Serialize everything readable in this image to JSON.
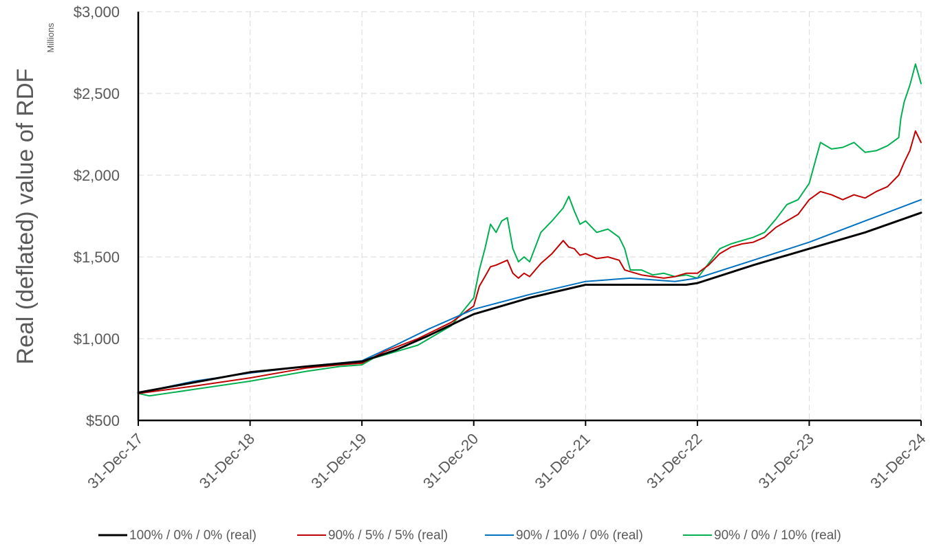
{
  "chart_data": {
    "type": "line",
    "title": "",
    "xlabel": "",
    "ylabel": "Real (deflated) value of RDF",
    "y_units_label": "Millions",
    "ylim": [
      500,
      3000
    ],
    "yticks": [
      500,
      1000,
      1500,
      2000,
      2500,
      3000
    ],
    "ytick_labels": [
      "$500",
      "$1,000",
      "$1,500",
      "$2,000",
      "$2,500",
      "$3,000"
    ],
    "xlim": [
      0,
      7
    ],
    "xticks": [
      0,
      1,
      2,
      3,
      4,
      5,
      6,
      7
    ],
    "xtick_labels": [
      "31-Dec-17",
      "31-Dec-18",
      "31-Dec-19",
      "31-Dec-20",
      "31-Dec-21",
      "31-Dec-22",
      "31-Dec-23",
      "31-Dec-24"
    ],
    "x_unit": "years since 31-Dec-17",
    "grid": true,
    "legend_position": "bottom",
    "series": [
      {
        "name": "100% / 0% / 0% (real)",
        "color": "#000000",
        "width": 3,
        "x": [
          0,
          1,
          1.5,
          2,
          2.3,
          2.6,
          3,
          3.5,
          4,
          4.5,
          4.9,
          5,
          5.5,
          6,
          6.5,
          7
        ],
        "values": [
          670,
          795,
          830,
          860,
          930,
          1020,
          1150,
          1250,
          1330,
          1330,
          1330,
          1340,
          1450,
          1550,
          1650,
          1770
        ]
      },
      {
        "name": "90% / 5% / 5% (real)",
        "color": "#c00000",
        "width": 2,
        "x": [
          0,
          0.5,
          1,
          1.5,
          1.8,
          2,
          2.2,
          2.5,
          2.8,
          3.0,
          3.05,
          3.1,
          3.15,
          3.2,
          3.3,
          3.35,
          3.4,
          3.45,
          3.5,
          3.6,
          3.7,
          3.8,
          3.85,
          3.9,
          3.95,
          4.0,
          4.1,
          4.2,
          4.3,
          4.35,
          4.4,
          4.5,
          4.6,
          4.7,
          4.8,
          4.9,
          5.0,
          5.1,
          5.2,
          5.3,
          5.4,
          5.5,
          5.6,
          5.7,
          5.8,
          5.9,
          6.0,
          6.1,
          6.2,
          6.3,
          6.4,
          6.5,
          6.6,
          6.7,
          6.8,
          6.85,
          6.9,
          6.95,
          7.0
        ],
        "values": [
          665,
          710,
          760,
          820,
          840,
          850,
          920,
          1000,
          1100,
          1200,
          1320,
          1380,
          1440,
          1450,
          1480,
          1400,
          1370,
          1400,
          1380,
          1460,
          1520,
          1600,
          1560,
          1550,
          1510,
          1520,
          1490,
          1500,
          1480,
          1420,
          1410,
          1390,
          1380,
          1370,
          1380,
          1400,
          1400,
          1450,
          1520,
          1560,
          1580,
          1590,
          1620,
          1680,
          1720,
          1760,
          1850,
          1900,
          1880,
          1850,
          1880,
          1860,
          1900,
          1930,
          2000,
          2080,
          2150,
          2270,
          2200
        ]
      },
      {
        "name": "90% / 10% / 0% (real)",
        "color": "#0070c0",
        "width": 2,
        "x": [
          0,
          0.5,
          1,
          1.5,
          2,
          2.3,
          2.6,
          3,
          3.5,
          4,
          4.4,
          4.8,
          5,
          5.5,
          6,
          6.5,
          7
        ],
        "values": [
          668,
          740,
          790,
          830,
          865,
          960,
          1060,
          1180,
          1270,
          1350,
          1370,
          1350,
          1370,
          1480,
          1590,
          1720,
          1850
        ]
      },
      {
        "name": "90% / 0% / 10% (real)",
        "color": "#00b050",
        "width": 2,
        "x": [
          0,
          0.1,
          0.5,
          1,
          1.5,
          1.8,
          2,
          2.1,
          2.2,
          2.5,
          2.8,
          3.0,
          3.05,
          3.1,
          3.15,
          3.2,
          3.25,
          3.3,
          3.35,
          3.4,
          3.45,
          3.5,
          3.6,
          3.7,
          3.8,
          3.85,
          3.9,
          3.95,
          4.0,
          4.1,
          4.2,
          4.3,
          4.35,
          4.4,
          4.5,
          4.6,
          4.7,
          4.8,
          4.9,
          5.0,
          5.1,
          5.2,
          5.3,
          5.4,
          5.5,
          5.6,
          5.7,
          5.8,
          5.9,
          6.0,
          6.1,
          6.2,
          6.3,
          6.4,
          6.5,
          6.6,
          6.7,
          6.8,
          6.82,
          6.85,
          6.9,
          6.95,
          7.0
        ],
        "values": [
          665,
          650,
          690,
          740,
          800,
          830,
          840,
          880,
          900,
          960,
          1080,
          1250,
          1420,
          1550,
          1700,
          1650,
          1720,
          1740,
          1550,
          1470,
          1500,
          1470,
          1650,
          1720,
          1800,
          1870,
          1780,
          1700,
          1720,
          1650,
          1670,
          1620,
          1550,
          1420,
          1420,
          1390,
          1400,
          1380,
          1390,
          1370,
          1460,
          1550,
          1580,
          1600,
          1620,
          1650,
          1730,
          1820,
          1850,
          1950,
          2200,
          2160,
          2170,
          2200,
          2140,
          2150,
          2180,
          2230,
          2350,
          2450,
          2550,
          2680,
          2560
        ]
      }
    ]
  }
}
